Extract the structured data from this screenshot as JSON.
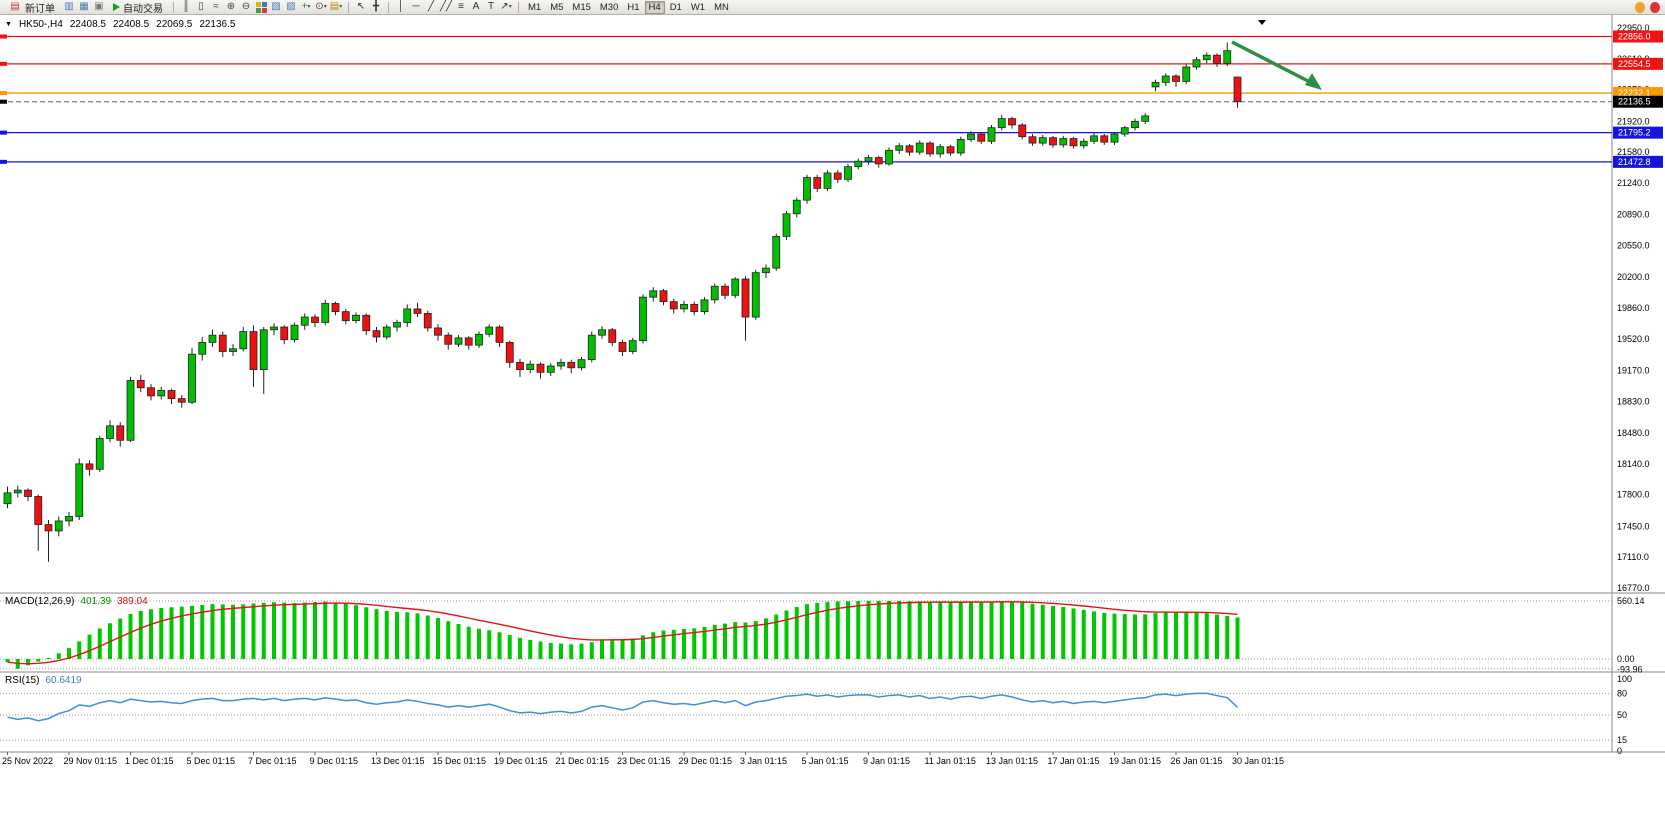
{
  "toolbar": {
    "new_order_label": "新订单",
    "autotrading_label": "自动交易",
    "timeframes": [
      "M1",
      "M5",
      "M15",
      "M30",
      "H1",
      "H4",
      "D1",
      "W1",
      "MN"
    ],
    "active_timeframe": "H4",
    "left_icons": [
      {
        "name": "chart-window-icon",
        "glyph": "▥",
        "color": "#4a7ab5"
      },
      {
        "name": "market-depth-icon",
        "glyph": "▦",
        "color": "#4a7ab5"
      },
      {
        "name": "alerts-icon",
        "glyph": "▣",
        "color": "#7a7a7a"
      }
    ],
    "chart_icons": [
      {
        "name": "bar-chart-icon",
        "glyph": "║",
        "color": "#444444"
      },
      {
        "name": "candlestick-chart-icon",
        "glyph": "▯",
        "color": "#444444"
      },
      {
        "name": "line-chart-icon",
        "glyph": "≈",
        "color": "#444444"
      },
      {
        "name": "zoom-in-icon",
        "glyph": "⊕",
        "color": "#444444"
      },
      {
        "name": "zoom-out-icon",
        "glyph": "⊖",
        "color": "#444444"
      },
      {
        "name": "tile-windows-icon",
        "glyph": "tiles"
      },
      {
        "name": "chart-shift-icon",
        "glyph": "▧",
        "color": "#4a7ab5"
      },
      {
        "name": "auto-scroll-icon",
        "glyph": "▨",
        "color": "#4a7ab5"
      },
      {
        "name": "indicators-icon",
        "glyph": "+",
        "color": "#2e8b2e",
        "caret": true
      },
      {
        "name": "periods-icon",
        "glyph": "⊙",
        "color": "#444444",
        "caret": true
      },
      {
        "name": "templates-icon",
        "glyph": "▤",
        "color": "#b8860b",
        "caret": true
      }
    ],
    "tool_icons": [
      {
        "name": "cursor-icon",
        "glyph": "↖",
        "color": "#333333"
      },
      {
        "name": "crosshair-icon",
        "glyph": "╋",
        "color": "#333333"
      }
    ],
    "draw_icons": [
      {
        "name": "vertical-line-icon",
        "glyph": "│",
        "color": "#333333"
      },
      {
        "name": "horizontal-line-icon",
        "glyph": "─",
        "color": "#333333"
      },
      {
        "name": "trendline-icon",
        "glyph": "╱",
        "color": "#333333"
      },
      {
        "name": "channel-icon",
        "glyph": "╱╱",
        "color": "#333333"
      },
      {
        "name": "fibonacci-icon",
        "glyph": "≡",
        "color": "#333333"
      },
      {
        "name": "text-icon",
        "glyph": "A",
        "color": "#333333"
      },
      {
        "name": "label-icon",
        "glyph": "T",
        "color": "#333333"
      },
      {
        "name": "arrows-icon",
        "glyph": "↗",
        "color": "#333333",
        "caret": true
      }
    ],
    "right_icons": [
      {
        "name": "community-orange-circle-icon",
        "color": "#f0a030"
      },
      {
        "name": "news-red-circle-icon",
        "color": "#e03030"
      }
    ]
  },
  "chart_header": {
    "marker_glyph": "▼",
    "symbol_period": "HK50-,H4",
    "open": "22408.5",
    "high": "22408.5",
    "low": "22069.5",
    "close": "22136.5"
  },
  "price_scale_ticks": [
    "22950.0",
    "22610.0",
    "22270.0",
    "21920.0",
    "21580.0",
    "21240.0",
    "20890.0",
    "20550.0",
    "20200.0",
    "19860.0",
    "19520.0",
    "19170.0",
    "18830.0",
    "18480.0",
    "18140.0",
    "17800.0",
    "17450.0",
    "17110.0",
    "16770.0"
  ],
  "levels": [
    {
      "price": 22856.0,
      "label": "22856.0",
      "color": "#ee1414",
      "type": "hline"
    },
    {
      "price": 22554.5,
      "label": "22554.5",
      "color": "#ee1414",
      "type": "hline"
    },
    {
      "price": 22232.1,
      "label": "22232.1",
      "color": "#ff9800",
      "type": "hline"
    },
    {
      "price": 22136.5,
      "label": "22136.5",
      "color": "#666666",
      "badge_color": "#000000",
      "type": "bid"
    },
    {
      "price": 21795.2,
      "label": "21795.2",
      "color": "#1414dd",
      "type": "hline"
    },
    {
      "price": 21472.8,
      "label": "21472.8",
      "color": "#1414dd",
      "type": "hline"
    }
  ],
  "annotation_arrow": {
    "color": "#2d8f44"
  },
  "chart_data": {
    "type": "candlestick",
    "symbol": "HK50-",
    "period": "H4",
    "price_axis_top": 22950,
    "price_axis_bottom": 16770,
    "up_color": "#00bf00",
    "down_color": "#ee1111",
    "x_label_step": 6,
    "x_labels": [
      "25 Nov 2022",
      "29 Nov 01:15",
      "1 Dec 01:15",
      "5 Dec 01:15",
      "7 Dec 01:15",
      "9 Dec 01:15",
      "13 Dec 01:15",
      "15 Dec 01:15",
      "19 Dec 01:15",
      "21 Dec 01:15",
      "23 Dec 01:15",
      "29 Dec 01:15",
      "3 Jan 01:15",
      "5 Jan 01:15",
      "9 Jan 01:15",
      "11 Jan 01:15",
      "13 Jan 01:15",
      "17 Jan 01:15",
      "19 Jan 01:15",
      "26 Jan 01:15",
      "30 Jan 01:15"
    ],
    "candles": [
      [
        17700,
        17890,
        17650,
        17820
      ],
      [
        17820,
        17900,
        17770,
        17850
      ],
      [
        17850,
        17870,
        17730,
        17780
      ],
      [
        17780,
        17800,
        17180,
        17470
      ],
      [
        17470,
        17520,
        17060,
        17400
      ],
      [
        17400,
        17560,
        17340,
        17510
      ],
      [
        17510,
        17610,
        17450,
        17560
      ],
      [
        17560,
        18200,
        17520,
        18140
      ],
      [
        18140,
        18180,
        18010,
        18080
      ],
      [
        18080,
        18450,
        18050,
        18420
      ],
      [
        18420,
        18620,
        18380,
        18560
      ],
      [
        18560,
        18600,
        18330,
        18400
      ],
      [
        18400,
        19100,
        18380,
        19060
      ],
      [
        19060,
        19120,
        18930,
        18980
      ],
      [
        18980,
        19020,
        18840,
        18890
      ],
      [
        18890,
        18990,
        18850,
        18950
      ],
      [
        18950,
        18970,
        18800,
        18860
      ],
      [
        18860,
        18900,
        18760,
        18820
      ],
      [
        18820,
        19420,
        18800,
        19350
      ],
      [
        19350,
        19540,
        19280,
        19480
      ],
      [
        19480,
        19620,
        19430,
        19560
      ],
      [
        19560,
        19600,
        19320,
        19380
      ],
      [
        19380,
        19460,
        19330,
        19410
      ],
      [
        19410,
        19650,
        19380,
        19600
      ],
      [
        19600,
        19670,
        18990,
        19180
      ],
      [
        19180,
        19650,
        18910,
        19620
      ],
      [
        19620,
        19690,
        19560,
        19650
      ],
      [
        19650,
        19670,
        19460,
        19510
      ],
      [
        19510,
        19700,
        19480,
        19670
      ],
      [
        19670,
        19800,
        19620,
        19760
      ],
      [
        19760,
        19790,
        19650,
        19700
      ],
      [
        19700,
        19950,
        19670,
        19910
      ],
      [
        19910,
        19930,
        19780,
        19820
      ],
      [
        19820,
        19850,
        19680,
        19720
      ],
      [
        19720,
        19810,
        19690,
        19780
      ],
      [
        19780,
        19800,
        19560,
        19610
      ],
      [
        19610,
        19650,
        19480,
        19540
      ],
      [
        19540,
        19680,
        19510,
        19650
      ],
      [
        19650,
        19730,
        19600,
        19700
      ],
      [
        19700,
        19900,
        19650,
        19850
      ],
      [
        19850,
        19920,
        19760,
        19800
      ],
      [
        19800,
        19830,
        19600,
        19640
      ],
      [
        19640,
        19680,
        19500,
        19560
      ],
      [
        19560,
        19590,
        19400,
        19460
      ],
      [
        19460,
        19560,
        19430,
        19530
      ],
      [
        19530,
        19550,
        19400,
        19450
      ],
      [
        19450,
        19600,
        19420,
        19570
      ],
      [
        19570,
        19680,
        19540,
        19650
      ],
      [
        19650,
        19670,
        19430,
        19480
      ],
      [
        19480,
        19500,
        19200,
        19260
      ],
      [
        19260,
        19300,
        19100,
        19180
      ],
      [
        19180,
        19280,
        19140,
        19240
      ],
      [
        19240,
        19260,
        19080,
        19150
      ],
      [
        19150,
        19250,
        19110,
        19220
      ],
      [
        19220,
        19300,
        19180,
        19260
      ],
      [
        19260,
        19290,
        19140,
        19200
      ],
      [
        19200,
        19320,
        19170,
        19290
      ],
      [
        19290,
        19600,
        19260,
        19560
      ],
      [
        19560,
        19660,
        19520,
        19620
      ],
      [
        19620,
        19640,
        19440,
        19480
      ],
      [
        19480,
        19510,
        19330,
        19380
      ],
      [
        19380,
        19530,
        19350,
        19500
      ],
      [
        19500,
        20010,
        19470,
        19980
      ],
      [
        19980,
        20090,
        19930,
        20050
      ],
      [
        20050,
        20070,
        19890,
        19930
      ],
      [
        19930,
        19960,
        19800,
        19850
      ],
      [
        19850,
        19940,
        19810,
        19900
      ],
      [
        19900,
        19930,
        19780,
        19820
      ],
      [
        19820,
        19980,
        19790,
        19950
      ],
      [
        19950,
        20130,
        19910,
        20100
      ],
      [
        20100,
        20130,
        19960,
        20000
      ],
      [
        20000,
        20200,
        19970,
        20180
      ],
      [
        20180,
        20210,
        19500,
        19760
      ],
      [
        19760,
        20280,
        19730,
        20250
      ],
      [
        20250,
        20340,
        20190,
        20300
      ],
      [
        20300,
        20680,
        20270,
        20650
      ],
      [
        20650,
        20930,
        20610,
        20900
      ],
      [
        20900,
        21080,
        20860,
        21050
      ],
      [
        21050,
        21330,
        21010,
        21300
      ],
      [
        21300,
        21330,
        21140,
        21180
      ],
      [
        21180,
        21380,
        21150,
        21350
      ],
      [
        21350,
        21380,
        21240,
        21280
      ],
      [
        21280,
        21450,
        21250,
        21420
      ],
      [
        21420,
        21510,
        21390,
        21480
      ],
      [
        21480,
        21550,
        21440,
        21520
      ],
      [
        21520,
        21540,
        21410,
        21450
      ],
      [
        21450,
        21630,
        21430,
        21600
      ],
      [
        21600,
        21680,
        21560,
        21650
      ],
      [
        21650,
        21670,
        21540,
        21580
      ],
      [
        21580,
        21710,
        21550,
        21680
      ],
      [
        21680,
        21700,
        21530,
        21560
      ],
      [
        21560,
        21670,
        21520,
        21640
      ],
      [
        21640,
        21660,
        21540,
        21570
      ],
      [
        21570,
        21750,
        21540,
        21720
      ],
      [
        21720,
        21810,
        21690,
        21780
      ],
      [
        21780,
        21800,
        21670,
        21700
      ],
      [
        21700,
        21880,
        21670,
        21850
      ],
      [
        21850,
        21990,
        21820,
        21950
      ],
      [
        21950,
        21970,
        21840,
        21880
      ],
      [
        21880,
        21900,
        21720,
        21750
      ],
      [
        21750,
        21780,
        21650,
        21680
      ],
      [
        21680,
        21770,
        21650,
        21740
      ],
      [
        21740,
        21760,
        21630,
        21660
      ],
      [
        21660,
        21760,
        21630,
        21730
      ],
      [
        21730,
        21750,
        21620,
        21650
      ],
      [
        21650,
        21730,
        21620,
        21700
      ],
      [
        21700,
        21790,
        21670,
        21760
      ],
      [
        21760,
        21780,
        21660,
        21690
      ],
      [
        21690,
        21800,
        21660,
        21780
      ],
      [
        21780,
        21870,
        21750,
        21850
      ],
      [
        21850,
        21950,
        21820,
        21920
      ],
      [
        21920,
        22010,
        21890,
        21980
      ],
      [
        22300,
        22380,
        22250,
        22350
      ],
      [
        22350,
        22450,
        22310,
        22420
      ],
      [
        22420,
        22440,
        22300,
        22360
      ],
      [
        22360,
        22550,
        22330,
        22520
      ],
      [
        22520,
        22630,
        22490,
        22600
      ],
      [
        22600,
        22680,
        22560,
        22650
      ],
      [
        22650,
        22670,
        22520,
        22560
      ],
      [
        22560,
        22790,
        22530,
        22700
      ],
      [
        22408.5,
        22408.5,
        22069.5,
        22136.5
      ]
    ],
    "macd": {
      "label": "MACD(12,26,9)",
      "main": "401.39",
      "signal": "389.04",
      "scale_max": "560.14",
      "scale_zero": "0.00",
      "scale_min": "-93.96",
      "hist_color": "#00c800",
      "signal_color": "#e41414",
      "values": [
        -30,
        -93.96,
        -60,
        -25,
        10,
        55,
        105,
        170,
        235,
        295,
        345,
        390,
        435,
        465,
        480,
        492,
        500,
        506,
        514,
        522,
        530,
        528,
        524,
        528,
        536,
        542,
        548,
        544,
        540,
        544,
        550,
        554,
        546,
        532,
        520,
        500,
        480,
        465,
        455,
        450,
        440,
        420,
        395,
        365,
        338,
        312,
        292,
        278,
        258,
        232,
        205,
        185,
        168,
        155,
        148,
        142,
        148,
        162,
        182,
        192,
        188,
        198,
        228,
        258,
        275,
        282,
        290,
        296,
        310,
        330,
        342,
        356,
        352,
        366,
        392,
        428,
        468,
        502,
        530,
        542,
        552,
        556,
        558,
        559,
        560.14,
        560,
        560.14,
        560,
        558,
        557,
        555,
        552,
        549,
        549,
        550,
        551,
        554,
        558,
        553,
        544,
        534,
        524,
        512,
        502,
        488,
        474,
        460,
        447,
        438,
        433,
        430,
        431,
        443,
        452,
        448,
        449,
        448,
        443,
        429,
        415,
        401.39
      ]
    },
    "rsi": {
      "label": "RSI(15)",
      "value": "60.6419",
      "line_color": "#3e8ede",
      "levels": [
        80,
        50,
        15
      ],
      "scale_labels": [
        "100",
        "80",
        "50",
        "15",
        "0"
      ],
      "values": [
        47,
        44,
        46,
        42,
        45,
        52,
        56,
        64,
        62,
        67,
        70,
        67,
        72,
        70,
        68,
        69,
        67,
        66,
        70,
        72,
        73,
        70,
        70,
        72,
        73,
        71,
        73,
        70,
        72,
        73,
        71,
        74,
        72,
        70,
        71,
        67,
        65,
        67,
        68,
        71,
        69,
        66,
        64,
        61,
        63,
        61,
        63,
        65,
        61,
        56,
        53,
        54,
        52,
        54,
        55,
        53,
        55,
        61,
        63,
        60,
        57,
        60,
        68,
        70,
        67,
        65,
        66,
        64,
        67,
        70,
        67,
        70,
        63,
        68,
        70,
        73,
        76,
        77,
        79,
        76,
        78,
        75,
        77,
        78,
        78,
        75,
        77,
        78,
        75,
        77,
        73,
        75,
        72,
        75,
        76,
        73,
        76,
        78,
        75,
        71,
        68,
        70,
        67,
        69,
        66,
        68,
        69,
        67,
        69,
        71,
        73,
        74,
        78,
        79,
        77,
        79,
        80,
        80,
        77,
        74,
        60.64
      ]
    }
  }
}
